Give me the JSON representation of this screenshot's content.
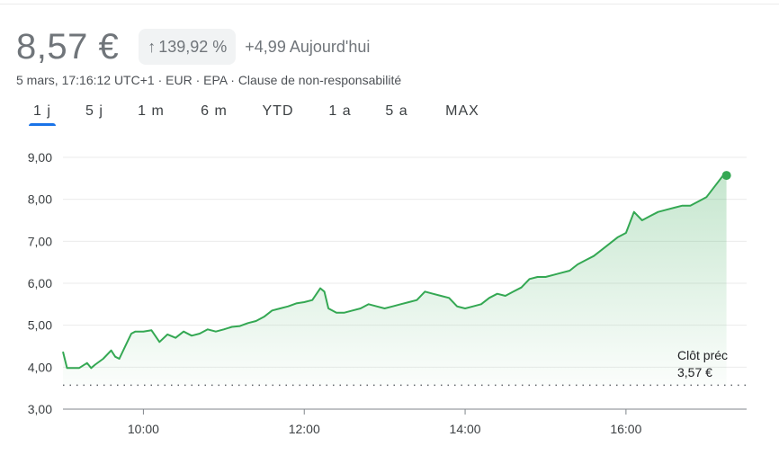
{
  "header": {
    "price": "8,57 €",
    "change_pct": "139,92 %",
    "change_abs": "+4,99 Aujourd'hui",
    "meta_date": "5 mars, 17:16:12 UTC+1",
    "meta_currency": "EUR",
    "meta_exchange": "EPA",
    "meta_disclaimer": "Clause de non-responsabilité"
  },
  "tabs": [
    {
      "label": "1 j",
      "active": true
    },
    {
      "label": "5 j",
      "active": false
    },
    {
      "label": "1 m",
      "active": false
    },
    {
      "label": "6 m",
      "active": false
    },
    {
      "label": "YTD",
      "active": false
    },
    {
      "label": "1 a",
      "active": false
    },
    {
      "label": "5 a",
      "active": false
    },
    {
      "label": "MAX",
      "active": false
    }
  ],
  "colors": {
    "line": "#34a853",
    "positive": "#34a853",
    "accent_tab": "#1a73e8",
    "grid": "#ebebeb",
    "text_muted": "#70757a"
  },
  "icons": {
    "badge_arrow": "arrow-up-icon"
  },
  "chart_data": {
    "type": "area",
    "ylim": [
      3,
      9
    ],
    "yticks": [
      "3,00",
      "4,00",
      "5,00",
      "6,00",
      "7,00",
      "8,00",
      "9,00"
    ],
    "xlim": [
      9.0,
      17.5
    ],
    "xticks": [
      {
        "value": 10,
        "label": "10:00"
      },
      {
        "value": 12,
        "label": "12:00"
      },
      {
        "value": 14,
        "label": "14:00"
      },
      {
        "value": 16,
        "label": "16:00"
      }
    ],
    "reference": {
      "label": "Clôt préc",
      "value_label": "3,57 €",
      "value": 3.57
    },
    "grid": true,
    "x": [
      9.0,
      9.05,
      9.1,
      9.2,
      9.3,
      9.35,
      9.4,
      9.5,
      9.6,
      9.65,
      9.7,
      9.8,
      9.85,
      9.9,
      10.0,
      10.1,
      10.2,
      10.3,
      10.4,
      10.5,
      10.6,
      10.7,
      10.8,
      10.9,
      11.0,
      11.1,
      11.2,
      11.3,
      11.4,
      11.5,
      11.6,
      11.7,
      11.8,
      11.9,
      12.0,
      12.1,
      12.2,
      12.25,
      12.3,
      12.4,
      12.5,
      12.6,
      12.7,
      12.8,
      12.9,
      13.0,
      13.1,
      13.2,
      13.3,
      13.4,
      13.5,
      13.6,
      13.7,
      13.8,
      13.9,
      14.0,
      14.1,
      14.2,
      14.3,
      14.4,
      14.5,
      14.6,
      14.7,
      14.8,
      14.9,
      15.0,
      15.1,
      15.2,
      15.3,
      15.4,
      15.5,
      15.6,
      15.7,
      15.8,
      15.9,
      16.0,
      16.1,
      16.2,
      16.3,
      16.4,
      16.5,
      16.6,
      16.7,
      16.8,
      16.9,
      17.0,
      17.1,
      17.2,
      17.25
    ],
    "values": [
      4.37,
      3.98,
      3.98,
      3.98,
      4.1,
      3.98,
      4.06,
      4.2,
      4.4,
      4.25,
      4.2,
      4.6,
      4.8,
      4.85,
      4.85,
      4.88,
      4.6,
      4.78,
      4.7,
      4.85,
      4.75,
      4.8,
      4.9,
      4.85,
      4.9,
      4.96,
      4.98,
      5.05,
      5.1,
      5.2,
      5.35,
      5.4,
      5.45,
      5.52,
      5.55,
      5.6,
      5.88,
      5.8,
      5.4,
      5.3,
      5.3,
      5.35,
      5.4,
      5.5,
      5.45,
      5.4,
      5.45,
      5.5,
      5.55,
      5.6,
      5.8,
      5.75,
      5.7,
      5.65,
      5.45,
      5.4,
      5.45,
      5.5,
      5.65,
      5.75,
      5.7,
      5.8,
      5.9,
      6.1,
      6.15,
      6.15,
      6.2,
      6.25,
      6.3,
      6.45,
      6.55,
      6.65,
      6.8,
      6.95,
      7.1,
      7.2,
      7.7,
      7.5,
      7.6,
      7.7,
      7.75,
      7.8,
      7.85,
      7.85,
      7.95,
      8.05,
      8.3,
      8.55,
      8.57
    ]
  }
}
